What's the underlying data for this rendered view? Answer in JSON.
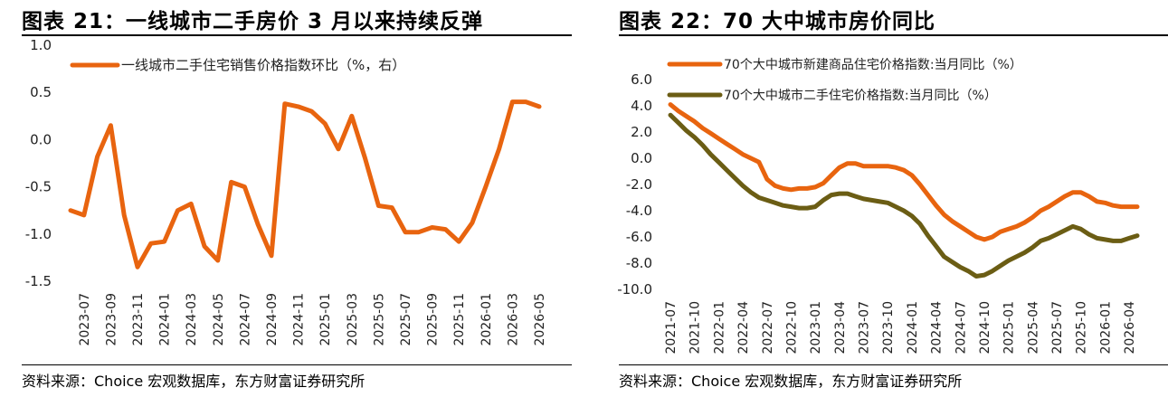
{
  "left_panel": {
    "title": "图表 21：一线城市二手房价 3 月以来持续反弹",
    "source": "资料来源：Choice 宏观数据库，东方财富证券研究所"
  },
  "right_panel": {
    "title": "图表 22：70 大中城市房价同比",
    "source": "资料来源：Choice 宏观数据库，东方财富证券研究所"
  },
  "chart_data": [
    {
      "type": "line",
      "title": "",
      "ylim": [
        -1.5,
        1.0
      ],
      "yticks": [
        1.0,
        0.5,
        0.0,
        -0.5,
        -1.0,
        -1.5
      ],
      "ytick_labels": [
        "1.0",
        "0.5",
        "0.0",
        "-0.5",
        "-1.0",
        "-1.5"
      ],
      "x": [
        "2023-06",
        "2023-07",
        "2023-08",
        "2023-09",
        "2023-10",
        "2023-11",
        "2023-12",
        "2024-01",
        "2024-02",
        "2024-03",
        "2024-04",
        "2024-05",
        "2024-06",
        "2024-07",
        "2024-08",
        "2024-09",
        "2024-10",
        "2024-11",
        "2024-12",
        "2025-01",
        "2025-02",
        "2025-03",
        "2025-04",
        "2025-05",
        "2025-06",
        "2025-07",
        "2025-08",
        "2025-09",
        "2025-10",
        "2025-11",
        "2025-12",
        "2026-01",
        "2026-02",
        "2026-03",
        "2026-04",
        "2026-05"
      ],
      "xtick_labels": [
        "2023-07",
        "2023-09",
        "2023-11",
        "2024-01",
        "2024-03",
        "2024-05",
        "2024-07",
        "2024-09",
        "2024-11",
        "2025-01",
        "2025-03",
        "2025-05",
        "2025-07",
        "2025-09",
        "2025-11",
        "2026-01",
        "2026-03",
        "2026-05"
      ],
      "grid": false,
      "legend_position": "top-left",
      "color": "#E8640F",
      "series": [
        {
          "name": "一线城市二手住宅销售价格指数环比（%，右）",
          "color": "#E8640F",
          "values": [
            -0.75,
            -0.8,
            -0.18,
            0.15,
            -0.8,
            -1.35,
            -1.1,
            -1.08,
            -0.75,
            -0.68,
            -1.13,
            -1.28,
            -0.45,
            -0.5,
            -0.9,
            -1.23,
            0.38,
            0.35,
            0.3,
            0.17,
            -0.1,
            0.25,
            -0.2,
            -0.7,
            -0.72,
            -0.98,
            -0.98,
            -0.93,
            -0.95,
            -1.08,
            -0.88,
            -0.5,
            -0.1,
            0.4,
            0.4,
            0.35
          ]
        }
      ]
    },
    {
      "type": "line",
      "title": "",
      "ylim": [
        -10.0,
        6.0
      ],
      "yticks": [
        6.0,
        4.0,
        2.0,
        0.0,
        -2.0,
        -4.0,
        -6.0,
        -8.0,
        -10.0
      ],
      "ytick_labels": [
        "6.0",
        "4.0",
        "2.0",
        "0.0",
        "-2.0",
        "-4.0",
        "-6.0",
        "-8.0",
        "-10.0"
      ],
      "x": [
        "2021-07",
        "2021-08",
        "2021-09",
        "2021-10",
        "2021-11",
        "2021-12",
        "2022-01",
        "2022-02",
        "2022-03",
        "2022-04",
        "2022-05",
        "2022-06",
        "2022-07",
        "2022-08",
        "2022-09",
        "2022-10",
        "2022-11",
        "2022-12",
        "2023-01",
        "2023-02",
        "2023-03",
        "2023-04",
        "2023-05",
        "2023-06",
        "2023-07",
        "2023-08",
        "2023-09",
        "2023-10",
        "2023-11",
        "2023-12",
        "2024-01",
        "2024-02",
        "2024-03",
        "2024-04",
        "2024-05",
        "2024-06",
        "2024-07",
        "2024-08",
        "2024-09",
        "2024-10",
        "2024-11",
        "2024-12",
        "2025-01",
        "2025-02",
        "2025-03",
        "2025-04",
        "2025-05",
        "2025-06",
        "2025-07",
        "2025-08",
        "2025-09",
        "2025-10",
        "2025-11",
        "2025-12",
        "2026-01",
        "2026-02",
        "2026-03",
        "2026-04",
        "2026-05"
      ],
      "xtick_labels": [
        "2021-07",
        "2021-10",
        "2022-01",
        "2022-04",
        "2022-07",
        "2022-10",
        "2023-01",
        "2023-04",
        "2023-07",
        "2023-10",
        "2024-01",
        "2024-04",
        "2024-07",
        "2024-10",
        "2025-01",
        "2025-04",
        "2025-07",
        "2025-10",
        "2026-01",
        "2026-04"
      ],
      "grid": false,
      "legend_position": "top-left",
      "series": [
        {
          "name": "70个大中城市新建商品住宅价格指数:当月同比（%）",
          "color": "#E8640F",
          "values": [
            4.1,
            3.6,
            3.2,
            2.8,
            2.3,
            1.9,
            1.5,
            1.1,
            0.7,
            0.3,
            0.0,
            -0.3,
            -1.6,
            -2.1,
            -2.3,
            -2.4,
            -2.3,
            -2.3,
            -2.2,
            -1.9,
            -1.3,
            -0.7,
            -0.4,
            -0.4,
            -0.6,
            -0.6,
            -0.6,
            -0.6,
            -0.7,
            -0.9,
            -1.3,
            -2.0,
            -2.8,
            -3.6,
            -4.3,
            -4.8,
            -5.2,
            -5.6,
            -6.0,
            -6.2,
            -6.0,
            -5.6,
            -5.4,
            -5.2,
            -4.9,
            -4.5,
            -4.0,
            -3.7,
            -3.3,
            -2.9,
            -2.6,
            -2.6,
            -2.9,
            -3.3,
            -3.4,
            -3.6,
            -3.7,
            -3.7,
            -3.7
          ]
        },
        {
          "name": "70个大中城市二手住宅价格指数:当月同比（%）",
          "color": "#6B5D14",
          "values": [
            3.3,
            2.7,
            2.1,
            1.6,
            1.0,
            0.3,
            -0.3,
            -0.9,
            -1.5,
            -2.1,
            -2.6,
            -3.0,
            -3.2,
            -3.4,
            -3.6,
            -3.7,
            -3.8,
            -3.8,
            -3.7,
            -3.2,
            -2.8,
            -2.7,
            -2.7,
            -2.9,
            -3.1,
            -3.2,
            -3.3,
            -3.4,
            -3.7,
            -4.0,
            -4.4,
            -5.0,
            -5.9,
            -6.7,
            -7.5,
            -7.9,
            -8.3,
            -8.6,
            -9.0,
            -8.9,
            -8.6,
            -8.2,
            -7.8,
            -7.5,
            -7.2,
            -6.8,
            -6.3,
            -6.1,
            -5.8,
            -5.5,
            -5.2,
            -5.4,
            -5.8,
            -6.1,
            -6.2,
            -6.3,
            -6.3,
            -6.1,
            -5.9
          ]
        }
      ]
    }
  ]
}
